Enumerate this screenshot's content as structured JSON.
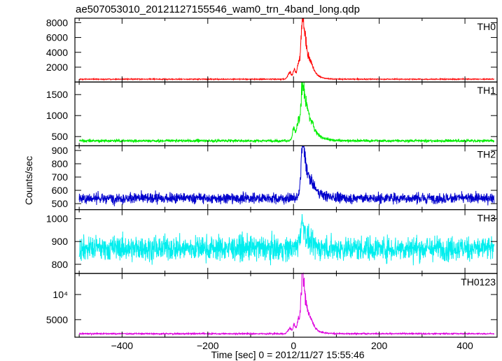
{
  "chart_data": {
    "type": "line",
    "title": "ae507053010_20121127155546_wam0_trn_4band_long.qdp",
    "xlabel": "Time [sec] 0 = 2012/11/27 15:55:46",
    "ylabel": "Counts/sec",
    "xlim": [
      -510,
      475
    ],
    "x_ticks": [
      -400,
      -200,
      0,
      200,
      400
    ],
    "x_tick_labels": [
      "−400",
      "−200",
      "0",
      "200",
      "400"
    ],
    "data_range": [
      -500,
      468
    ],
    "panels": [
      {
        "name": "TH0",
        "color": "#ff0000",
        "ylim": [
          0,
          8600
        ],
        "y_ticks": [
          2000,
          4000,
          6000,
          8000
        ],
        "y_tick_labels": [
          "2000",
          "4000",
          "6000",
          "8000"
        ],
        "baseline": 380,
        "noise": 45,
        "peaks": [
          {
            "t": 22,
            "amp": 7900,
            "w": 5
          },
          {
            "t": 12,
            "amp": 1800,
            "w": 4
          },
          {
            "t": 2,
            "amp": 1300,
            "w": 3
          },
          {
            "t": -8,
            "amp": 900,
            "w": 6
          },
          {
            "t": 42,
            "amp": 1000,
            "w": 8
          },
          {
            "t": 30,
            "amp": 2200,
            "w": 10
          }
        ]
      },
      {
        "name": "TH1",
        "color": "#00ee00",
        "ylim": [
          280,
          1800
        ],
        "y_ticks": [
          500,
          1000,
          1500
        ],
        "y_tick_labels": [
          "500",
          "1000",
          "1500"
        ],
        "baseline": 400,
        "noise": 22,
        "peaks": [
          {
            "t": 22,
            "amp": 1300,
            "w": 5
          },
          {
            "t": 12,
            "amp": 400,
            "w": 5
          },
          {
            "t": 1,
            "amp": 300,
            "w": 4
          },
          {
            "t": 32,
            "amp": 450,
            "w": 10
          },
          {
            "t": 45,
            "amp": 200,
            "w": 12
          }
        ]
      },
      {
        "name": "TH2",
        "color": "#0000cc",
        "ylim": [
          455,
          935
        ],
        "y_ticks": [
          500,
          600,
          700,
          800,
          900
        ],
        "y_tick_labels": [
          "500",
          "600",
          "700",
          "800",
          "900"
        ],
        "baseline": 540,
        "noise": 28,
        "peaks": [
          {
            "t": 22,
            "amp": 370,
            "w": 5
          },
          {
            "t": 30,
            "amp": 120,
            "w": 12
          },
          {
            "t": 45,
            "amp": 50,
            "w": 15
          }
        ]
      },
      {
        "name": "TH3",
        "color": "#00eeee",
        "ylim": [
          760,
          1040
        ],
        "y_ticks": [
          800,
          900,
          1000
        ],
        "y_tick_labels": [
          "800",
          "900",
          "1000"
        ],
        "baseline": 870,
        "noise": 38,
        "peaks": [
          {
            "t": 22,
            "amp": 120,
            "w": 8
          }
        ]
      },
      {
        "name": "TH0123",
        "color": "#dd00dd",
        "ylim": [
          1500,
          14200
        ],
        "y_ticks": [
          5000,
          10000
        ],
        "y_tick_labels": [
          "5000",
          "10⁴"
        ],
        "baseline": 2200,
        "noise": 90,
        "peaks": [
          {
            "t": 22,
            "amp": 10800,
            "w": 5
          },
          {
            "t": 12,
            "amp": 2300,
            "w": 4
          },
          {
            "t": 2,
            "amp": 1700,
            "w": 3
          },
          {
            "t": -8,
            "amp": 1100,
            "w": 6
          },
          {
            "t": 42,
            "amp": 1300,
            "w": 8
          },
          {
            "t": 30,
            "amp": 2800,
            "w": 10
          }
        ]
      }
    ]
  }
}
